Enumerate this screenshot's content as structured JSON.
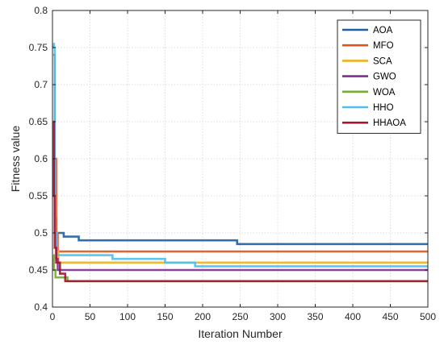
{
  "chart_data": {
    "type": "line",
    "xlabel": "Iteration Number",
    "ylabel": "Fitness value",
    "xlim": [
      0,
      500
    ],
    "ylim": [
      0.4,
      0.8
    ],
    "xticks": [
      0,
      50,
      100,
      150,
      200,
      250,
      300,
      350,
      400,
      450,
      500
    ],
    "xtick_labels": [
      "0",
      "50",
      "100",
      "150",
      "200",
      "250",
      "300",
      "350",
      "400",
      "450",
      "500"
    ],
    "yticks": [
      0.4,
      0.45,
      0.5,
      0.55,
      0.6,
      0.65,
      0.7,
      0.75,
      0.8
    ],
    "ytick_labels": [
      "0.4",
      "0.45",
      "0.5",
      "0.55",
      "0.6",
      "0.65",
      "0.7",
      "0.75",
      "0.8"
    ],
    "grid": true,
    "legend_position": "top-right",
    "series": [
      {
        "name": "AOA",
        "color": "#1f5fa0",
        "x": [
          1,
          3,
          5,
          15,
          35,
          245,
          246,
          500
        ],
        "y": [
          0.6,
          0.52,
          0.5,
          0.495,
          0.49,
          0.49,
          0.485,
          0.485
        ]
      },
      {
        "name": "MFO",
        "color": "#d9541a",
        "x": [
          1,
          3,
          5,
          7,
          500
        ],
        "y": [
          0.74,
          0.6,
          0.5,
          0.475,
          0.475
        ]
      },
      {
        "name": "SCA",
        "color": "#edb120",
        "x": [
          1,
          3,
          5,
          8,
          150,
          500
        ],
        "y": [
          0.55,
          0.5,
          0.475,
          0.46,
          0.46,
          0.46
        ]
      },
      {
        "name": "GWO",
        "color": "#7e2f8e",
        "x": [
          1,
          3,
          5,
          7,
          500
        ],
        "y": [
          0.6,
          0.5,
          0.465,
          0.45,
          0.45
        ]
      },
      {
        "name": "WOA",
        "color": "#77ac30",
        "x": [
          1,
          2,
          4,
          12,
          20,
          500
        ],
        "y": [
          0.47,
          0.45,
          0.44,
          0.44,
          0.435,
          0.435
        ]
      },
      {
        "name": "HHO",
        "color": "#4dbeee",
        "x": [
          1,
          2,
          3,
          4,
          6,
          80,
          150,
          190,
          500
        ],
        "y": [
          0.755,
          0.75,
          0.6,
          0.5,
          0.47,
          0.465,
          0.46,
          0.455,
          0.455
        ]
      },
      {
        "name": "HHAOA",
        "color": "#a2142f",
        "x": [
          1,
          2,
          3,
          5,
          10,
          17,
          500
        ],
        "y": [
          0.65,
          0.55,
          0.48,
          0.46,
          0.445,
          0.435,
          0.435
        ]
      }
    ]
  }
}
